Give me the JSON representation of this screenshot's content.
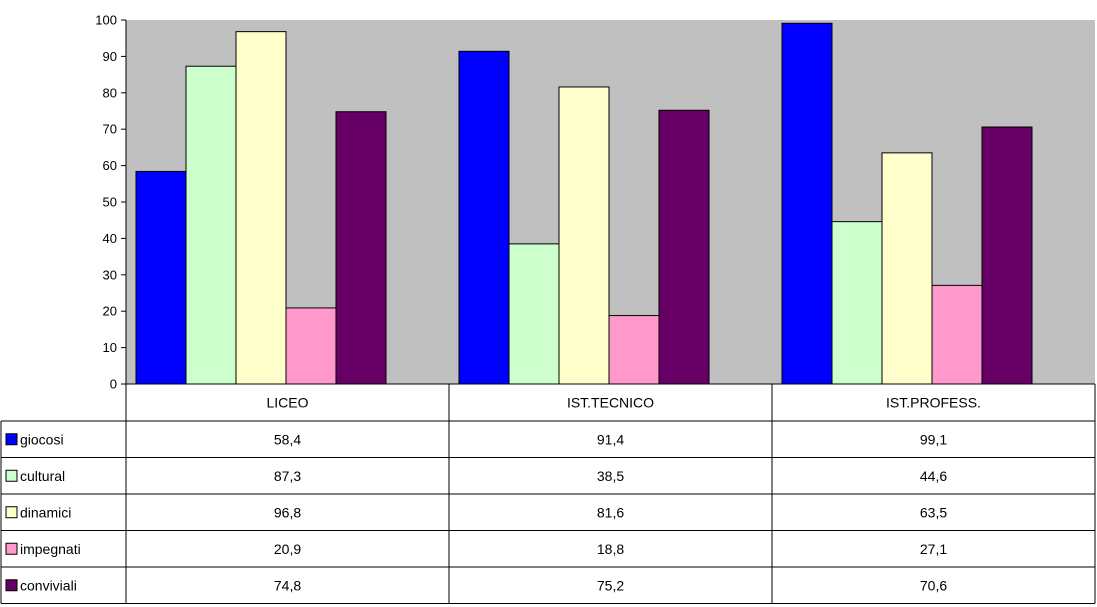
{
  "chart_data": {
    "type": "bar",
    "categories": [
      "LICEO",
      "IST.TECNICO",
      "IST.PROFESS."
    ],
    "series": [
      {
        "name": "giocosi",
        "color": "#0000ff",
        "values": [
          58.4,
          91.4,
          99.1
        ],
        "labels": [
          "58,4",
          "91,4",
          "99,1"
        ]
      },
      {
        "name": "cultural",
        "color": "#ccffcc",
        "values": [
          87.3,
          38.5,
          44.6
        ],
        "labels": [
          "87,3",
          "38,5",
          "44,6"
        ]
      },
      {
        "name": "dinamici",
        "color": "#ffffcc",
        "values": [
          96.8,
          81.6,
          63.5
        ],
        "labels": [
          "96,8",
          "81,6",
          "63,5"
        ]
      },
      {
        "name": "impegnati",
        "color": "#ff99cc",
        "values": [
          20.9,
          18.8,
          27.1
        ],
        "labels": [
          "20,9",
          "18,8",
          "27,1"
        ]
      },
      {
        "name": "conviviali",
        "color": "#660066",
        "values": [
          74.8,
          75.2,
          70.6
        ],
        "labels": [
          "74,8",
          "75,2",
          "70,6"
        ]
      }
    ],
    "ylim": [
      0,
      100
    ],
    "yticks": [
      0,
      10,
      20,
      30,
      40,
      50,
      60,
      70,
      80,
      90,
      100
    ],
    "plot_background": "#c0c0c0",
    "grid": false,
    "legend": "data-table"
  }
}
